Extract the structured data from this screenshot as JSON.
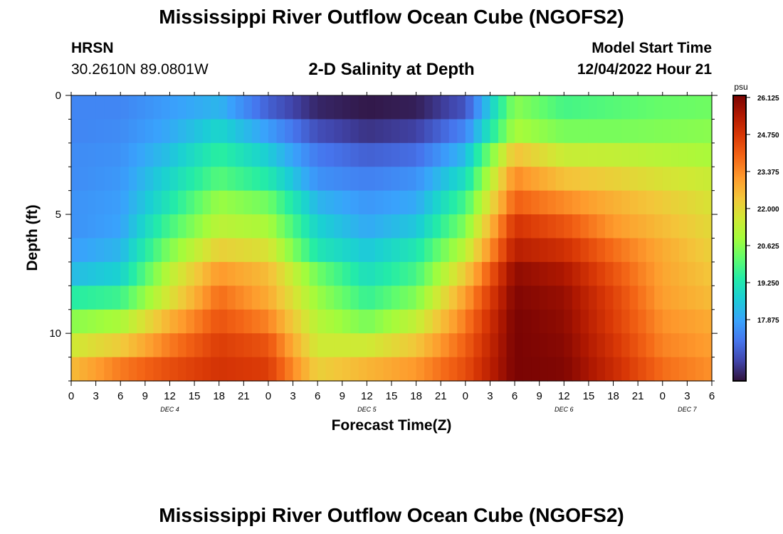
{
  "header": {
    "title": "Mississippi River Outflow Ocean Cube (NGOFS2)",
    "station": "HRSN",
    "coords": "30.2610N  89.0801W",
    "subtitle": "2-D Salinity at Depth",
    "model_start_label": "Model Start Time",
    "model_start_value": "12/04/2022 Hour 21"
  },
  "footer": {
    "title": "Mississippi River Outflow Ocean Cube (NGOFS2)"
  },
  "colors": {
    "min": "#30123b",
    "max": "#7a0403"
  },
  "chart_data": {
    "type": "heatmap",
    "title": "2-D Salinity at Depth",
    "xlabel": "Forecast Time(Z)",
    "ylabel": "Depth (ft)",
    "x_tick_labels": [
      "0",
      "3",
      "6",
      "9",
      "12",
      "15",
      "18",
      "21",
      "0",
      "3",
      "6",
      "9",
      "12",
      "15",
      "18",
      "21",
      "0",
      "3",
      "6",
      "9",
      "12",
      "15",
      "18",
      "21",
      "0",
      "3",
      "6"
    ],
    "day_labels": [
      {
        "label": "DEC 4",
        "hour": 12
      },
      {
        "label": "DEC 5",
        "hour": 36
      },
      {
        "label": "DEC 6",
        "hour": 60
      },
      {
        "label": "DEC 7",
        "hour": 75
      }
    ],
    "x_hours_range": [
      0,
      78
    ],
    "y_ticks": [
      0,
      5,
      10
    ],
    "y_tick_labels": [
      "0",
      "5",
      "10"
    ],
    "ylim": [
      0,
      12
    ],
    "depth_rows": [
      0.5,
      1.5,
      2.5,
      3.5,
      4.5,
      5.5,
      6.5,
      7.5,
      8.5,
      9.5,
      10.5,
      11.5
    ],
    "colorbar": {
      "unit": "psu",
      "range": [
        15.6,
        26.2
      ],
      "tick_values": [
        17.875,
        19.25,
        20.625,
        22.0,
        23.375,
        24.75,
        26.125
      ],
      "tick_labels": [
        "17.875",
        "19.250",
        "20.625",
        "22.000",
        "23.375",
        "24.750",
        "26.125"
      ]
    },
    "salinity_keypoints": {
      "hours": [
        0,
        6,
        12,
        18,
        24,
        30,
        36,
        42,
        48,
        54,
        60,
        66,
        72,
        78
      ],
      "rows": [
        [
          17.4,
          17.4,
          17.8,
          18.2,
          16.8,
          15.9,
          15.7,
          15.8,
          16.6,
          20.6,
          19.8,
          20.0,
          20.2,
          20.3
        ],
        [
          17.4,
          17.5,
          18.0,
          18.8,
          17.8,
          16.5,
          16.1,
          16.3,
          17.4,
          21.0,
          20.4,
          20.4,
          20.5,
          20.6
        ],
        [
          17.5,
          17.6,
          18.4,
          19.5,
          18.6,
          17.2,
          16.8,
          17.0,
          18.3,
          22.5,
          21.5,
          21.4,
          21.2,
          21.0
        ],
        [
          17.5,
          17.7,
          18.8,
          20.0,
          19.3,
          17.6,
          17.3,
          17.6,
          19.0,
          23.4,
          22.5,
          22.2,
          21.8,
          21.5
        ],
        [
          17.6,
          17.8,
          19.2,
          20.8,
          20.3,
          18.2,
          17.7,
          18.0,
          19.8,
          24.0,
          23.4,
          22.8,
          22.3,
          21.8
        ],
        [
          17.6,
          17.9,
          19.8,
          21.3,
          21.0,
          18.7,
          18.0,
          18.5,
          20.5,
          24.8,
          24.2,
          23.2,
          22.6,
          22.0
        ],
        [
          17.8,
          18.2,
          20.5,
          22.2,
          21.8,
          19.2,
          18.5,
          19.2,
          21.3,
          25.3,
          24.9,
          23.8,
          22.9,
          22.2
        ],
        [
          18.3,
          18.7,
          21.3,
          23.2,
          22.6,
          20.3,
          19.0,
          19.8,
          22.3,
          25.9,
          25.5,
          24.2,
          23.0,
          22.4
        ],
        [
          19.4,
          19.7,
          21.8,
          23.8,
          22.9,
          20.8,
          19.6,
          20.5,
          23.1,
          26.1,
          25.8,
          24.5,
          23.1,
          22.6
        ],
        [
          20.6,
          21.0,
          22.8,
          24.2,
          23.5,
          21.2,
          20.4,
          21.4,
          23.6,
          26.2,
          25.9,
          24.6,
          23.3,
          22.9
        ],
        [
          21.6,
          22.3,
          23.6,
          24.6,
          24.2,
          21.6,
          21.6,
          22.4,
          24.0,
          26.2,
          26.0,
          24.8,
          23.5,
          23.1
        ],
        [
          22.6,
          23.6,
          24.3,
          24.8,
          24.6,
          22.2,
          22.7,
          23.2,
          24.3,
          26.2,
          26.1,
          25.0,
          23.8,
          23.3
        ]
      ]
    }
  }
}
